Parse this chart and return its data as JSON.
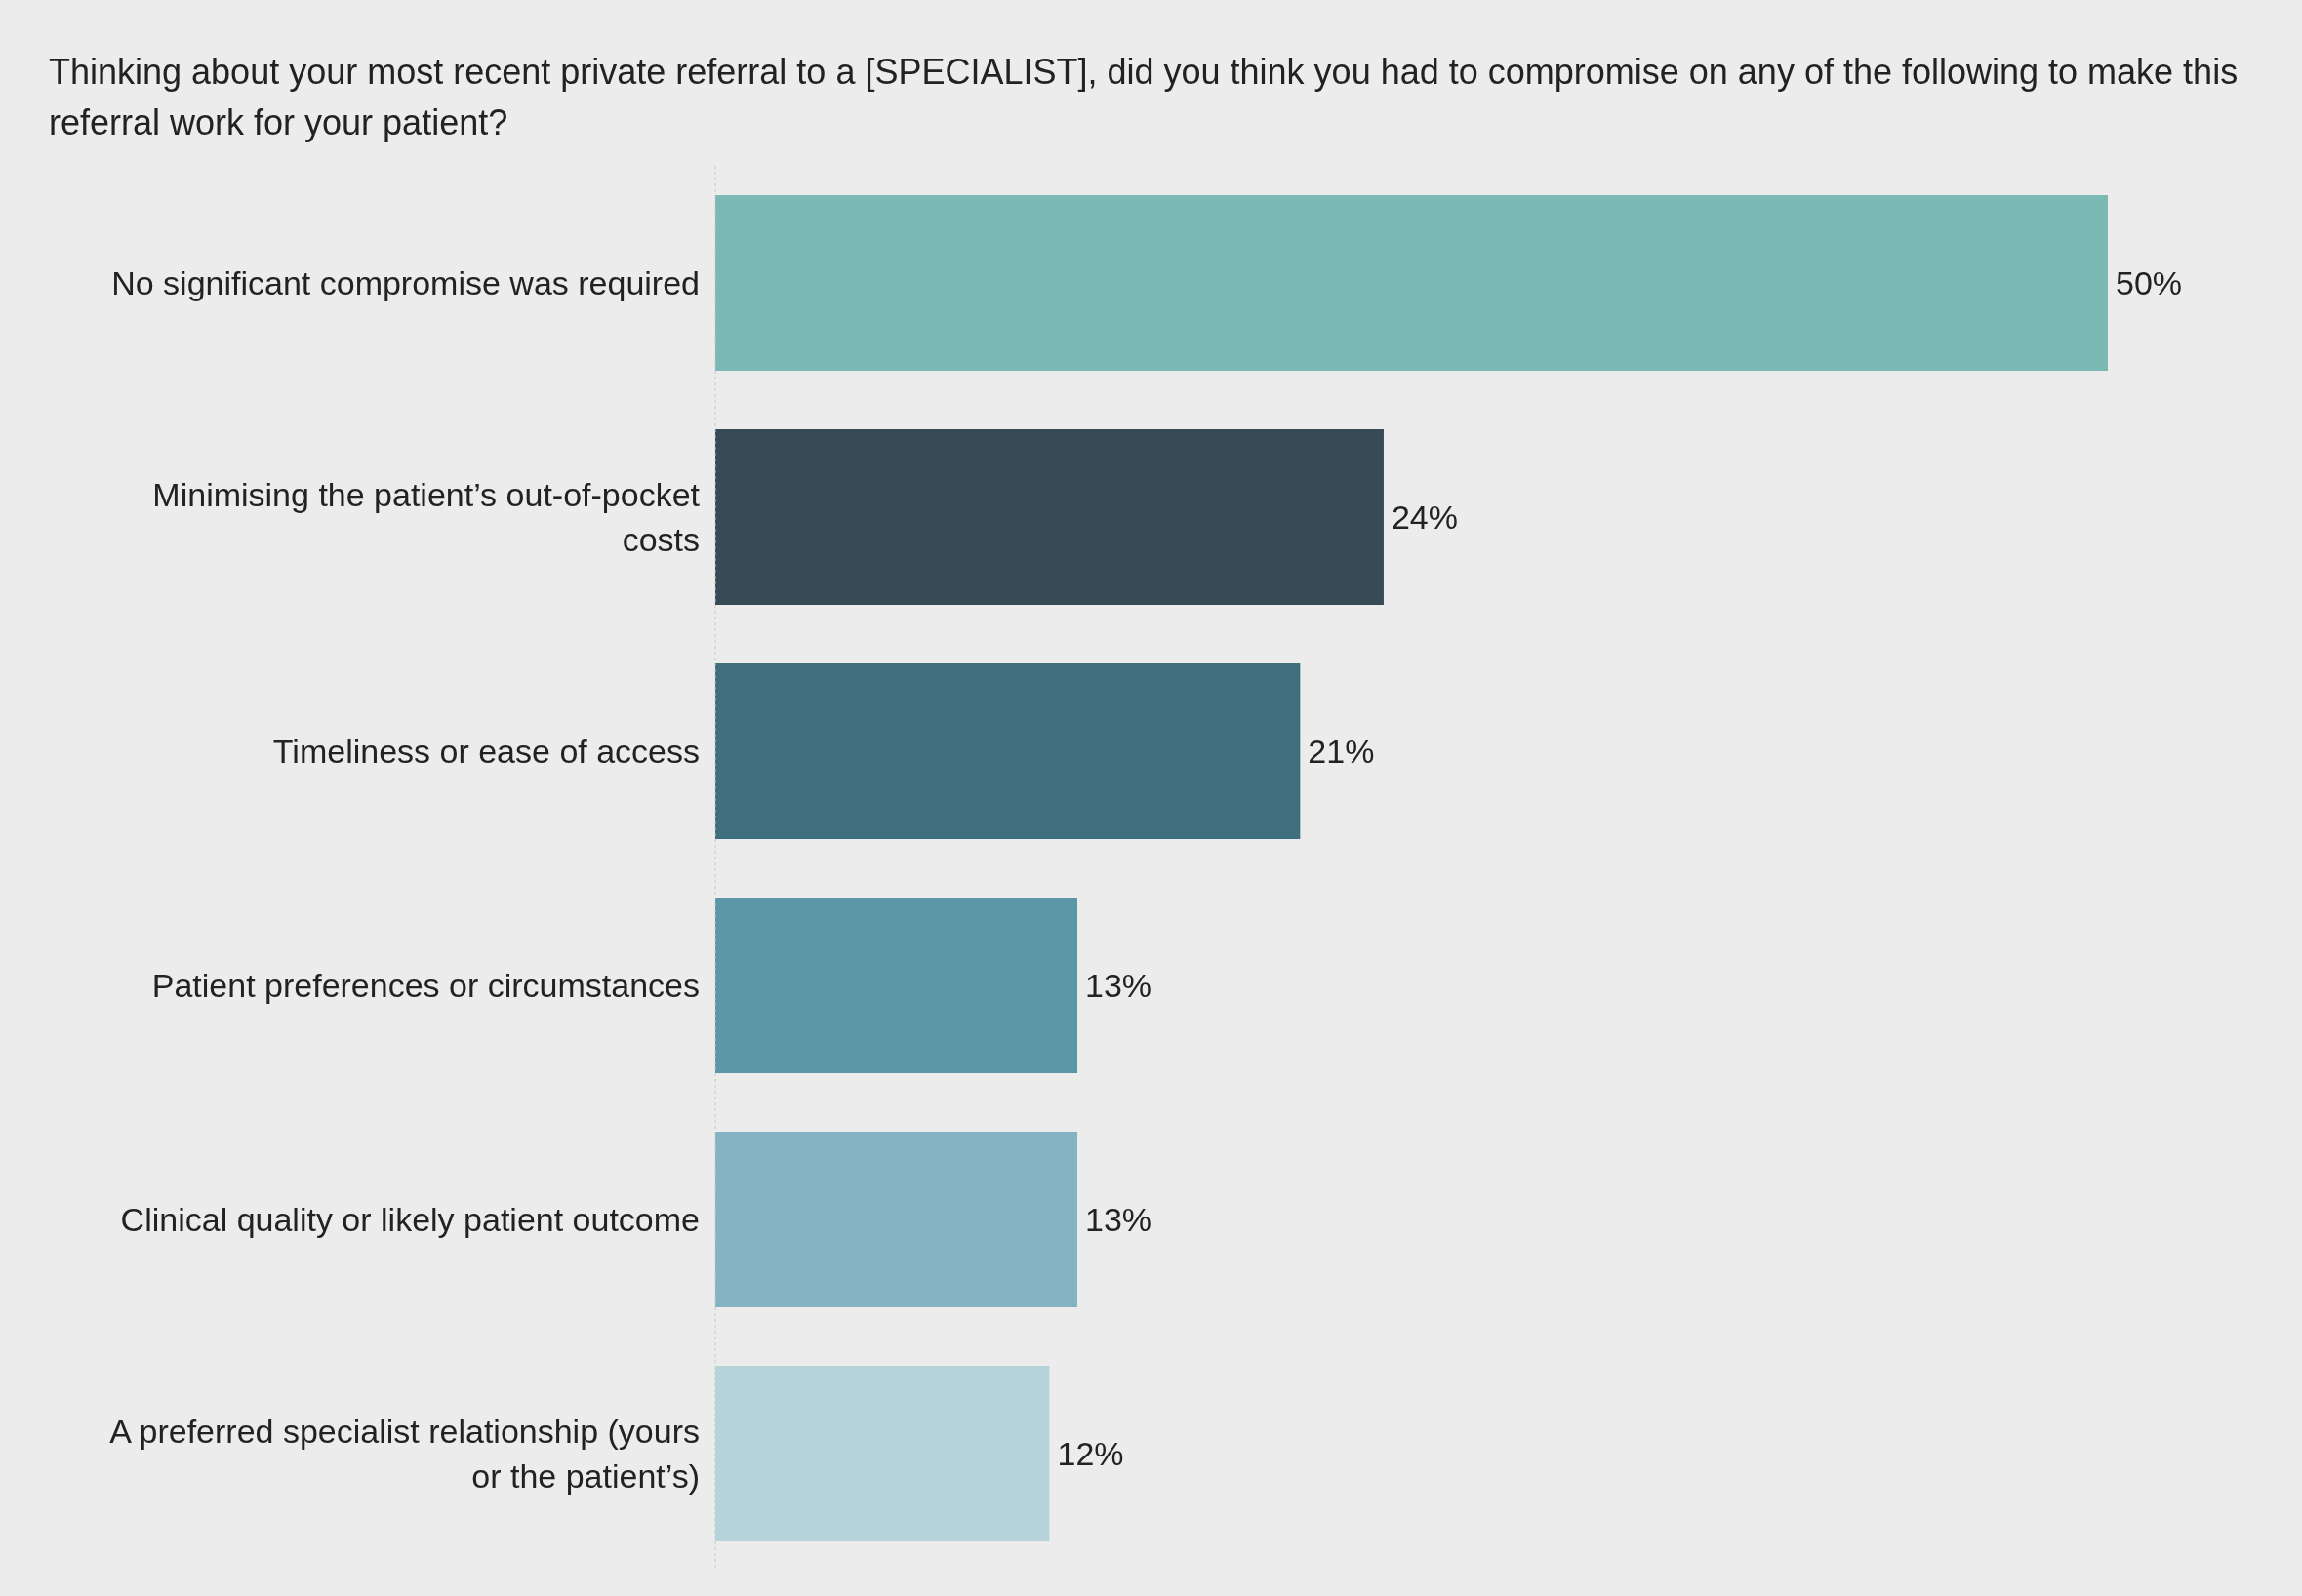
{
  "chart_data": {
    "type": "bar",
    "orientation": "horizontal",
    "tick_labels": false,
    "title": "Thinking about your most recent private referral to a [SPECIALIST], did you think you had to compromise on any of the following to make this referral work for your patient?",
    "categories": [
      "No significant compromise was required",
      "Minimising the patient’s out-of-pocket costs",
      "Timeliness or ease of access",
      "Patient preferences or circumstances",
      "Clinical quality or likely patient outcome",
      "A preferred specialist relationship (yours or the patient’s)"
    ],
    "values": [
      50,
      24,
      21,
      13,
      13,
      12
    ],
    "value_labels": [
      "50%",
      "24%",
      "21%",
      "13%",
      "13%",
      "12%"
    ],
    "colors": [
      "#7ab9b4",
      "#364b55",
      "#3f6e7c",
      "#5b97a6",
      "#84b4c3",
      "#b5d3d8"
    ]
  }
}
